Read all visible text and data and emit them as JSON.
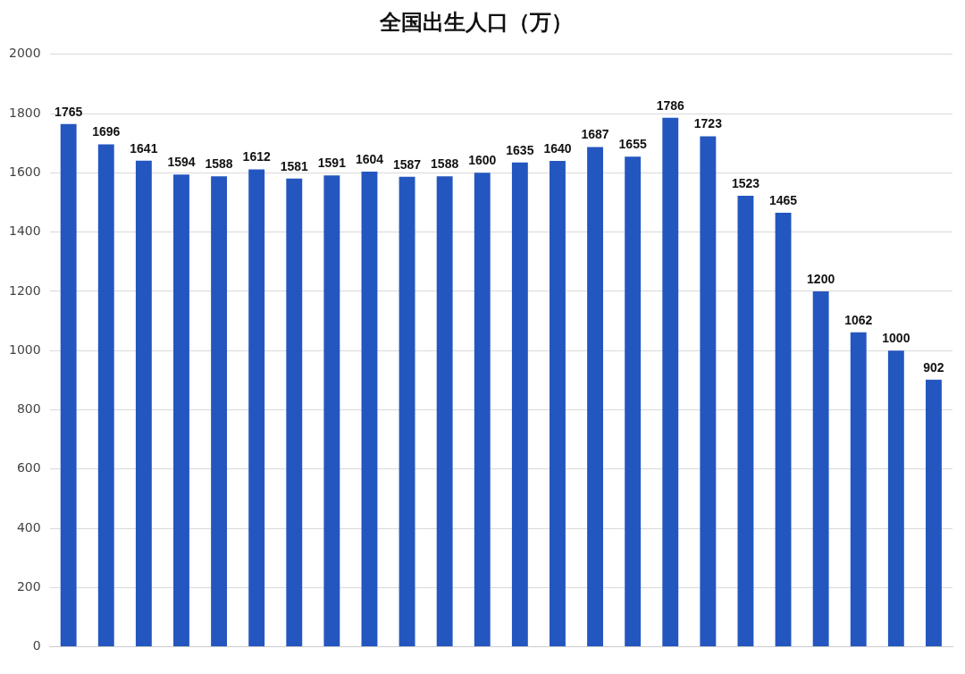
{
  "chart_data": {
    "type": "bar",
    "title": "全国出生人口（万）",
    "categories": [
      null,
      null,
      null,
      null,
      null,
      null,
      null,
      null,
      null,
      null,
      null,
      null,
      null,
      null,
      null,
      null,
      null,
      null,
      null,
      null,
      null,
      null,
      null,
      null
    ],
    "values": [
      1765,
      1696,
      1641,
      1594,
      1588,
      1612,
      1581,
      1591,
      1604,
      1587,
      1588,
      1600,
      1635,
      1640,
      1687,
      1655,
      1786,
      1723,
      1523,
      1465,
      1200,
      1062,
      1000,
      902
    ],
    "color": "#2456c0",
    "ylim": [
      0,
      2000
    ],
    "yticks": [
      0,
      200,
      400,
      600,
      800,
      1000,
      1200,
      1400,
      1600,
      1800,
      2000
    ],
    "grid": "y",
    "data_labels": true
  }
}
